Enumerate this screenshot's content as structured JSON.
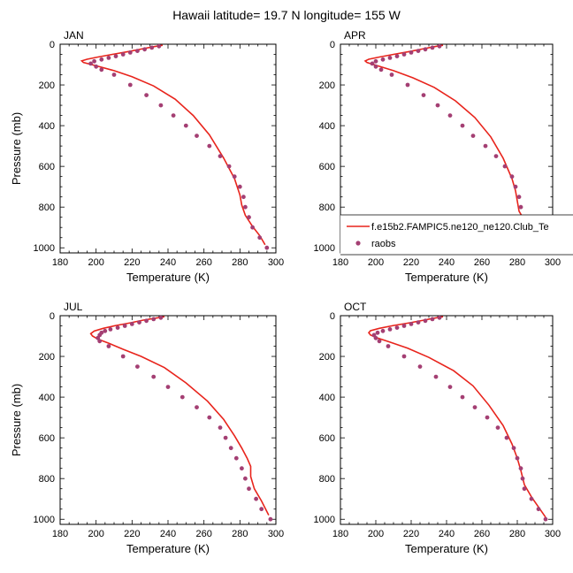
{
  "figure": {
    "title": "Hawaii  latitude= 19.7 N longitude= 155 W"
  },
  "legend": {
    "model_label": "f.e15b2.FAMPIC5.ne120_ne120.Club_Te",
    "obs_label": "raobs",
    "model_color": "#e8241c",
    "obs_color": "#a43f73",
    "placement": "inside APR panel, lower area, extending past right edge"
  },
  "colors": {
    "model_line": "#e8241c",
    "obs_marker": "#a43f73",
    "axes": "#000000"
  },
  "chart_data": [
    {
      "type": "line",
      "panel": "JAN",
      "xlabel": "Temperature (K)",
      "ylabel": "Pressure (mb)",
      "xlim": [
        180,
        300
      ],
      "ylim": [
        0,
        1025
      ],
      "y_inverted": true,
      "x_ticks": [
        180,
        200,
        220,
        240,
        260,
        280,
        300
      ],
      "y_ticks": [
        0,
        200,
        400,
        600,
        800,
        1000
      ],
      "series": [
        {
          "name": "f.e15b2.FAMPIC5.ne120_ne120.Club_Te",
          "style": "line",
          "points": [
            [
              237,
              5
            ],
            [
              232,
              12
            ],
            [
              226,
              22
            ],
            [
              218,
              36
            ],
            [
              209,
              50
            ],
            [
              201,
              63
            ],
            [
              195,
              74
            ],
            [
              192,
              82
            ],
            [
              193,
              90
            ],
            [
              200,
              106
            ],
            [
              210,
              130
            ],
            [
              220,
              160
            ],
            [
              232,
              205
            ],
            [
              244,
              270
            ],
            [
              254,
              350
            ],
            [
              263,
              445
            ],
            [
              271,
              560
            ],
            [
              277,
              660
            ],
            [
              280,
              740
            ],
            [
              281,
              790
            ],
            [
              283,
              840
            ],
            [
              287,
              895
            ],
            [
              291,
              940
            ],
            [
              294,
              985
            ]
          ]
        },
        {
          "name": "raobs",
          "style": "markers",
          "points": [
            [
              235,
              10
            ],
            [
              231,
              17
            ],
            [
              227,
              25
            ],
            [
              223,
              33
            ],
            [
              219,
              41
            ],
            [
              215,
              50
            ],
            [
              211,
              59
            ],
            [
              207,
              67
            ],
            [
              203,
              75
            ],
            [
              199,
              84
            ],
            [
              197,
              95
            ],
            [
              200,
              110
            ],
            [
              203,
              125
            ],
            [
              210,
              150
            ],
            [
              219,
              200
            ],
            [
              228,
              250
            ],
            [
              236,
              300
            ],
            [
              243,
              350
            ],
            [
              250,
              400
            ],
            [
              256,
              450
            ],
            [
              263,
              500
            ],
            [
              269,
              550
            ],
            [
              274,
              600
            ],
            [
              277,
              650
            ],
            [
              280,
              700
            ],
            [
              282,
              750
            ],
            [
              283,
              800
            ],
            [
              285,
              850
            ],
            [
              287,
              900
            ],
            [
              291,
              950
            ],
            [
              295,
              1000
            ]
          ]
        }
      ]
    },
    {
      "type": "line",
      "panel": "APR",
      "xlabel": "Temperature (K)",
      "ylabel": "",
      "xlim": [
        180,
        300
      ],
      "ylim": [
        0,
        1025
      ],
      "y_inverted": true,
      "x_ticks": [
        180,
        200,
        220,
        240,
        260,
        280,
        300
      ],
      "y_ticks": [
        0,
        200,
        400,
        600,
        800,
        1000
      ],
      "series": [
        {
          "name": "f.e15b2.FAMPIC5.ne120_ne120.Club_Te",
          "style": "line",
          "points": [
            [
              238,
              5
            ],
            [
              233,
              12
            ],
            [
              227,
              22
            ],
            [
              219,
              36
            ],
            [
              210,
              50
            ],
            [
              202,
              63
            ],
            [
              196,
              74
            ],
            [
              194,
              82
            ],
            [
              195,
              90
            ],
            [
              201,
              106
            ],
            [
              210,
              130
            ],
            [
              221,
              165
            ],
            [
              233,
              212
            ],
            [
              245,
              278
            ],
            [
              256,
              360
            ],
            [
              265,
              455
            ],
            [
              272,
              560
            ],
            [
              277,
              660
            ],
            [
              279,
              720
            ],
            [
              280,
              770
            ],
            [
              281,
              820
            ],
            [
              285,
              880
            ],
            [
              290,
              935
            ],
            [
              293,
              980
            ]
          ]
        },
        {
          "name": "raobs",
          "style": "markers",
          "points": [
            [
              236,
              10
            ],
            [
              232,
              17
            ],
            [
              228,
              25
            ],
            [
              224,
              33
            ],
            [
              220,
              41
            ],
            [
              216,
              50
            ],
            [
              212,
              59
            ],
            [
              208,
              67
            ],
            [
              204,
              75
            ],
            [
              200,
              84
            ],
            [
              198,
              95
            ],
            [
              200,
              110
            ],
            [
              203,
              125
            ],
            [
              209,
              150
            ],
            [
              218,
              200
            ],
            [
              227,
              250
            ],
            [
              235,
              300
            ],
            [
              242,
              350
            ],
            [
              249,
              400
            ],
            [
              255,
              450
            ],
            [
              262,
              500
            ],
            [
              268,
              550
            ],
            [
              273,
              600
            ],
            [
              277,
              650
            ],
            [
              279,
              700
            ],
            [
              281,
              750
            ],
            [
              282,
              800
            ],
            [
              283,
              850
            ],
            [
              286,
              900
            ],
            [
              290,
              950
            ],
            [
              294,
              1000
            ]
          ]
        }
      ]
    },
    {
      "type": "line",
      "panel": "JUL",
      "xlabel": "Temperature (K)",
      "ylabel": "Pressure (mb)",
      "xlim": [
        180,
        300
      ],
      "ylim": [
        0,
        1025
      ],
      "y_inverted": true,
      "x_ticks": [
        180,
        200,
        220,
        240,
        260,
        280,
        300
      ],
      "y_ticks": [
        0,
        200,
        400,
        600,
        800,
        1000
      ],
      "series": [
        {
          "name": "f.e15b2.FAMPIC5.ne120_ne120.Club_Te",
          "style": "line",
          "points": [
            [
              238,
              5
            ],
            [
              233,
              12
            ],
            [
              226,
              22
            ],
            [
              219,
              35
            ],
            [
              211,
              48
            ],
            [
              204,
              62
            ],
            [
              199,
              75
            ],
            [
              197,
              88
            ],
            [
              198,
              100
            ],
            [
              201,
              115
            ],
            [
              207,
              135
            ],
            [
              215,
              165
            ],
            [
              225,
              200
            ],
            [
              238,
              255
            ],
            [
              250,
              330
            ],
            [
              262,
              420
            ],
            [
              271,
              510
            ],
            [
              277,
              590
            ],
            [
              281,
              650
            ],
            [
              284,
              700
            ],
            [
              286,
              740
            ],
            [
              286,
              790
            ],
            [
              288,
              850
            ],
            [
              292,
              910
            ],
            [
              296,
              980
            ]
          ]
        },
        {
          "name": "raobs",
          "style": "markers",
          "points": [
            [
              236,
              10
            ],
            [
              232,
              17
            ],
            [
              228,
              25
            ],
            [
              224,
              33
            ],
            [
              220,
              41
            ],
            [
              216,
              50
            ],
            [
              212,
              59
            ],
            [
              208,
              67
            ],
            [
              205,
              75
            ],
            [
              203,
              84
            ],
            [
              202,
              95
            ],
            [
              201,
              110
            ],
            [
              202,
              125
            ],
            [
              207,
              150
            ],
            [
              215,
              200
            ],
            [
              223,
              250
            ],
            [
              232,
              300
            ],
            [
              240,
              350
            ],
            [
              248,
              400
            ],
            [
              256,
              450
            ],
            [
              263,
              500
            ],
            [
              269,
              550
            ],
            [
              272,
              600
            ],
            [
              275,
              650
            ],
            [
              278,
              700
            ],
            [
              281,
              750
            ],
            [
              283,
              800
            ],
            [
              285,
              850
            ],
            [
              289,
              900
            ],
            [
              292,
              950
            ],
            [
              297,
              1000
            ]
          ]
        }
      ]
    },
    {
      "type": "line",
      "panel": "OCT",
      "xlabel": "Temperature (K)",
      "ylabel": "",
      "xlim": [
        180,
        300
      ],
      "ylim": [
        0,
        1025
      ],
      "y_inverted": true,
      "x_ticks": [
        180,
        200,
        220,
        240,
        260,
        280,
        300
      ],
      "y_ticks": [
        0,
        200,
        400,
        600,
        800,
        1000
      ],
      "series": [
        {
          "name": "f.e15b2.FAMPIC5.ne120_ne120.Club_Te",
          "style": "line",
          "points": [
            [
              238,
              5
            ],
            [
              233,
              12
            ],
            [
              227,
              22
            ],
            [
              219,
              35
            ],
            [
              210,
              48
            ],
            [
              202,
              62
            ],
            [
              197,
              74
            ],
            [
              196,
              84
            ],
            [
              197,
              95
            ],
            [
              201,
              110
            ],
            [
              208,
              130
            ],
            [
              218,
              160
            ],
            [
              230,
              205
            ],
            [
              244,
              270
            ],
            [
              255,
              345
            ],
            [
              264,
              440
            ],
            [
              272,
              540
            ],
            [
              277,
              630
            ],
            [
              280,
              700
            ],
            [
              282,
              760
            ],
            [
              284,
              830
            ],
            [
              288,
              890
            ],
            [
              292,
              940
            ],
            [
              296,
              990
            ]
          ]
        },
        {
          "name": "raobs",
          "style": "markers",
          "points": [
            [
              236,
              10
            ],
            [
              232,
              17
            ],
            [
              228,
              25
            ],
            [
              224,
              33
            ],
            [
              220,
              41
            ],
            [
              216,
              50
            ],
            [
              212,
              59
            ],
            [
              208,
              67
            ],
            [
              204,
              75
            ],
            [
              201,
              84
            ],
            [
              199,
              95
            ],
            [
              200,
              110
            ],
            [
              202,
              125
            ],
            [
              207,
              150
            ],
            [
              216,
              200
            ],
            [
              225,
              250
            ],
            [
              234,
              300
            ],
            [
              242,
              350
            ],
            [
              249,
              400
            ],
            [
              256,
              450
            ],
            [
              263,
              500
            ],
            [
              269,
              550
            ],
            [
              274,
              600
            ],
            [
              278,
              650
            ],
            [
              280,
              700
            ],
            [
              282,
              750
            ],
            [
              283,
              800
            ],
            [
              284,
              850
            ],
            [
              288,
              900
            ],
            [
              292,
              950
            ],
            [
              296,
              1000
            ]
          ]
        }
      ]
    }
  ]
}
